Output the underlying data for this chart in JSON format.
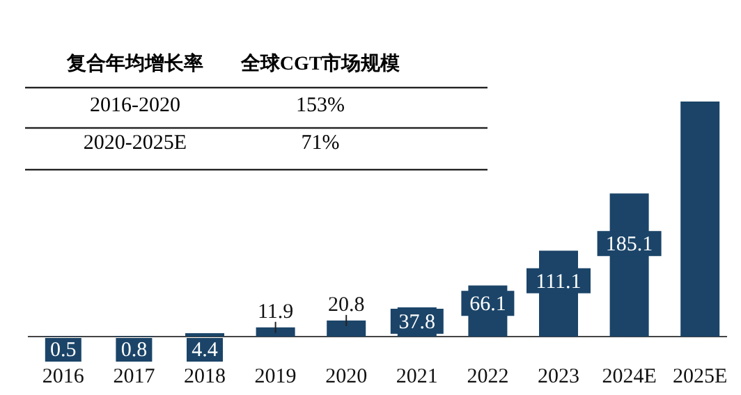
{
  "chart_data": {
    "type": "bar",
    "categories": [
      "2016",
      "2017",
      "2018",
      "2019",
      "2020",
      "2021",
      "2022",
      "2023",
      "2024E",
      "2025E"
    ],
    "values": [
      0.5,
      0.8,
      4.4,
      11.9,
      20.8,
      37.8,
      66.1,
      111.1,
      185.1,
      304
    ],
    "value_labels": [
      "0.5",
      "0.8",
      "4.4",
      "11.9",
      "20.8",
      "37.8",
      "66.1",
      "111.1",
      "185.1",
      null
    ],
    "color": "#1b4468",
    "annotations": [
      "复合年均增长率",
      "全球CGT市场规模",
      "2016-2020",
      "153%",
      "2020-2025E",
      "71%"
    ]
  }
}
